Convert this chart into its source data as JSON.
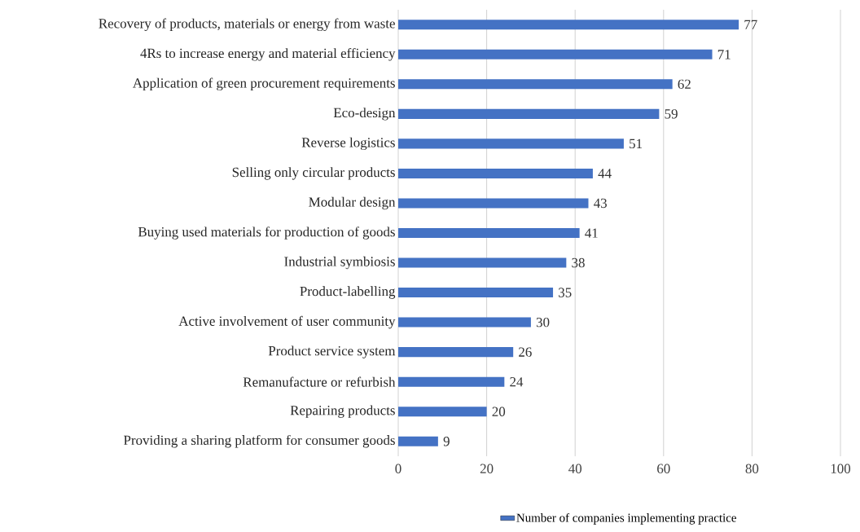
{
  "chart_data": {
    "type": "bar",
    "orientation": "horizontal",
    "categories": [
      "Recovery of products, materials or energy from waste",
      "4Rs to increase energy and material efficiency",
      "Application of green procurement requirements",
      "Eco-design",
      "Reverse logistics",
      "Selling only circular products",
      "Modular design",
      "Buying used materials for production of goods",
      "Industrial symbiosis",
      "Product-labelling",
      "Active involvement of user community",
      "Product service system",
      "Remanufacture or refurbish",
      "Repairing products",
      "Providing a sharing platform for consumer goods"
    ],
    "series": [
      {
        "name": "Number of companies implementing practice",
        "color": "#4472c4",
        "values": [
          77,
          71,
          62,
          59,
          51,
          44,
          43,
          41,
          38,
          35,
          30,
          26,
          24,
          20,
          9
        ]
      }
    ],
    "xlim": [
      0,
      100
    ],
    "xticks": [
      0,
      20,
      40,
      60,
      80,
      100
    ],
    "grid": "x",
    "legend": "bottom",
    "data_labels": true
  }
}
